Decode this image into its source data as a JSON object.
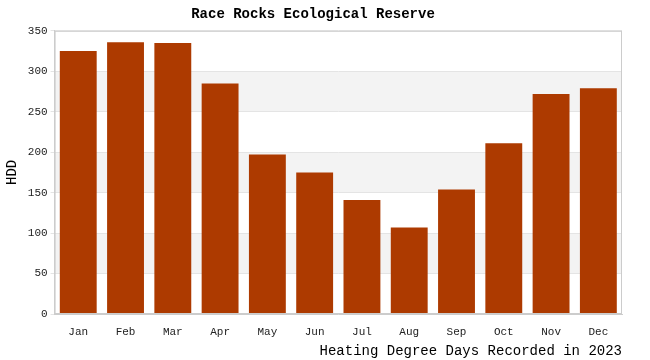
{
  "chart_data": {
    "type": "bar",
    "title": "Race Rocks Ecological Reserve",
    "xlabel": "Heating Degree Days Recorded in 2023",
    "ylabel": "HDD",
    "categories": [
      "Jan",
      "Feb",
      "Mar",
      "Apr",
      "May",
      "Jun",
      "Jul",
      "Aug",
      "Sep",
      "Oct",
      "Nov",
      "Dec"
    ],
    "values": [
      325,
      336,
      335,
      285,
      197,
      175,
      141,
      107,
      154,
      211,
      272,
      279
    ],
    "color": "#ad3a00",
    "ylim": [
      0,
      350
    ],
    "yticks": [
      0,
      50,
      100,
      150,
      200,
      250,
      300,
      350
    ],
    "grid": true
  }
}
